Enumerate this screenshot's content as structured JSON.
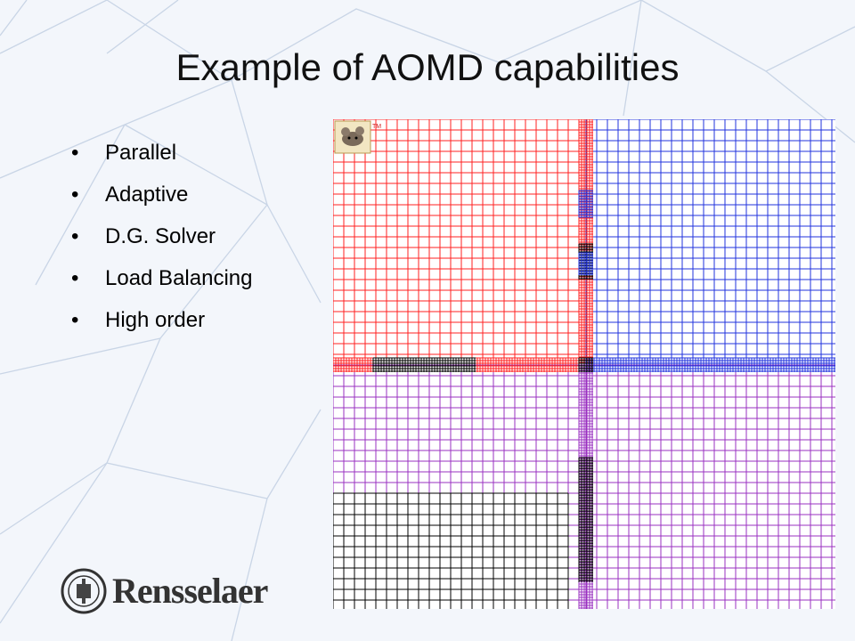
{
  "slide": {
    "title": "Example of AOMD capabilities",
    "bullets": [
      {
        "label": "Parallel"
      },
      {
        "label": "Adaptive"
      },
      {
        "label": "D.G. Solver"
      },
      {
        "label": "Load Balancing"
      },
      {
        "label": "High order"
      }
    ],
    "bullet_glyph": "•"
  },
  "figure": {
    "mesh_colors": {
      "red": "#ff2020",
      "blue": "#2233dd",
      "purple": "#9a30c0",
      "black": "#000000"
    },
    "tm_mark": "TM"
  },
  "logo": {
    "name": "Rensselaer"
  }
}
